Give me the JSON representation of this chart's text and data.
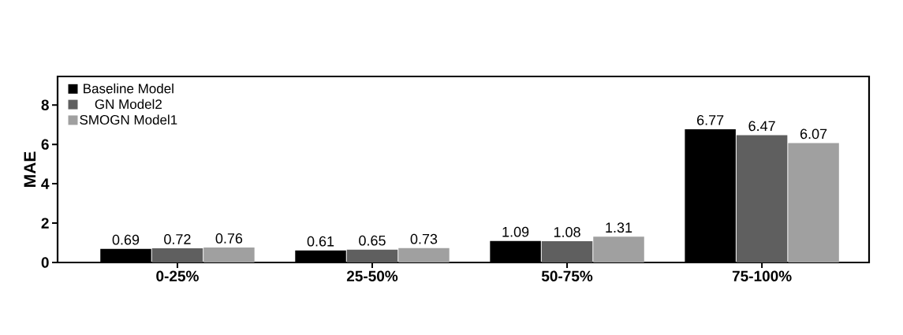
{
  "chart_data": {
    "type": "bar",
    "ylabel": "MAE",
    "categories": [
      "0-25%",
      "25-50%",
      "50-75%",
      "75-100%"
    ],
    "series": [
      {
        "name": "Baseline Model",
        "color": "#000000",
        "values": [
          0.69,
          0.61,
          1.09,
          6.77
        ]
      },
      {
        "name": "GN Model2",
        "color": "#5f5f5f",
        "values": [
          0.72,
          0.65,
          1.08,
          6.47
        ]
      },
      {
        "name": "SMOGN Model1",
        "color": "#a0a0a0",
        "values": [
          0.76,
          0.73,
          1.31,
          6.07
        ]
      }
    ],
    "ylim": [
      0,
      9.45
    ],
    "yticks": [
      0,
      2,
      4,
      6,
      8
    ],
    "grid": false,
    "legend": "top left",
    "data_labels": true
  }
}
